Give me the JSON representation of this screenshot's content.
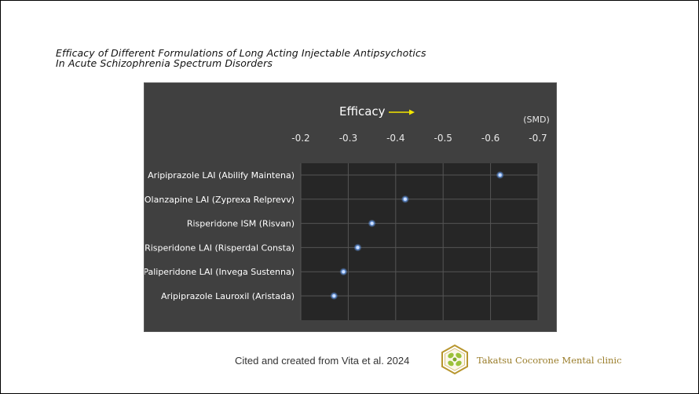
{
  "title_line1": "Efficacy of Different Formulations of Long Acting Injectable Antipsychotics",
  "title_line2": "In Acute Schizophrenia Spectrum Disorders",
  "chart_data": {
    "type": "scatter",
    "title": "Efficacy",
    "unit_label": "(SMD)",
    "xlim": [
      -0.2,
      -0.7
    ],
    "x_ticks": [
      -0.2,
      -0.3,
      -0.4,
      -0.5,
      -0.6,
      -0.7
    ],
    "x_tick_labels": [
      "-0.2",
      "-0.3",
      "-0.4",
      "-0.5",
      "-0.6",
      "-0.7"
    ],
    "categories": [
      "Aripiprazole LAI (Abilify Maintena)",
      "Olanzapine LAI (Zyprexa Relprevv)",
      "Risperidone ISM (Risvan)",
      "Risperidone LAI (Risperdal Consta)",
      "Paliperidone LAI (Invega Sustenna)",
      "Aripiprazole Lauroxil (Aristada)"
    ],
    "values": [
      -0.62,
      -0.42,
      -0.35,
      -0.32,
      -0.29,
      -0.27
    ],
    "grid": true,
    "colors": {
      "panel_bg": "#404040",
      "plot_bg": "#262626",
      "grid": "#555555",
      "point": "#6ea8ff",
      "arrow": "#f2e600",
      "text": "#e8e8e8"
    }
  },
  "citation": "Cited and created from Vita et al. 2024",
  "clinic_name": "Takatsu Cocorone Mental clinic"
}
